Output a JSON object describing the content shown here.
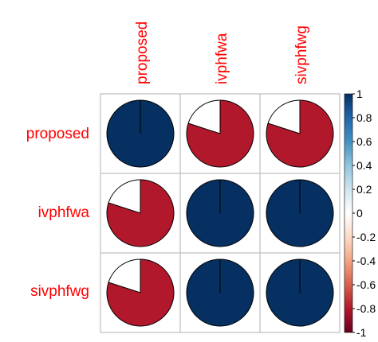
{
  "chart_data": {
    "type": "heatmap",
    "method": "pie",
    "variables": [
      "proposed",
      "ivphfwa",
      "sivphfwg"
    ],
    "row_labels": [
      "proposed",
      "ivphfwa",
      "sivphfwg"
    ],
    "col_labels": [
      "proposed",
      "ivphfwa",
      "sivphfwg"
    ],
    "matrix": [
      [
        1.0,
        -0.8,
        -0.8
      ],
      [
        -0.8,
        1.0,
        1.0
      ],
      [
        -0.8,
        1.0,
        1.0
      ]
    ],
    "colorbar": {
      "range": [
        -1,
        1
      ],
      "ticks": [
        "1",
        "0.8",
        "0.6",
        "0.4",
        "0.2",
        "0",
        "-0.2",
        "-0.4",
        "-0.6",
        "-0.8",
        "-1"
      ],
      "colors": [
        "#67001F",
        "#B2182B",
        "#D6604D",
        "#F4A582",
        "#FDDBC7",
        "#FFFFFF",
        "#D1E5F0",
        "#92C5DE",
        "#4393C3",
        "#2166AC",
        "#053061"
      ]
    },
    "label_color": "#FF0000",
    "grid": true,
    "legend": "right"
  }
}
